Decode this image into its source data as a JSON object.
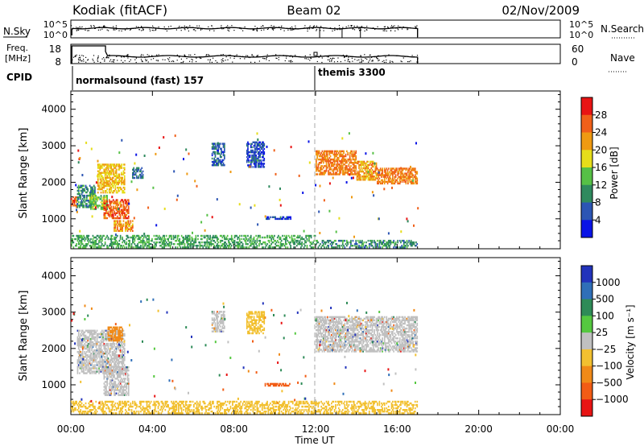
{
  "header": {
    "station": "Kodiak (fitACF)",
    "beam": "Beam 02",
    "date": "02/Nov/2009"
  },
  "nsky_panel": {
    "label": "N.Sky",
    "right_label": "N.Search",
    "tick_top": "10^5",
    "tick_bottom": "10^0"
  },
  "freq_panel": {
    "label_line1": "Freq.",
    "label_line2": "[MHz]",
    "right_label": "Nave",
    "left_ticks": [
      "18",
      "8"
    ],
    "right_ticks": [
      "60",
      "0"
    ]
  },
  "cpid": {
    "label": "CPID",
    "segments": [
      {
        "start_hour": 0,
        "text": "normalsound (fast) 157"
      },
      {
        "start_hour": 12,
        "text": "themis 3300"
      }
    ]
  },
  "x_axis": {
    "label": "Time UT",
    "ticks": [
      "00:00",
      "04:00",
      "08:00",
      "12:00",
      "16:00",
      "20:00",
      "00:00"
    ]
  },
  "colors": {
    "power_scale": [
      "#0a14e6",
      "#2c55b4",
      "#2f8a5e",
      "#56c046",
      "#e6dd1a",
      "#ef9a12",
      "#f0601a",
      "#e81414"
    ],
    "velocity_scale": [
      "#2233bb",
      "#2f6fb8",
      "#2e8b57",
      "#55c840",
      "#c0c0c0",
      "#f2c030",
      "#f08a18",
      "#f25c15",
      "#e81414"
    ]
  },
  "chart_data": [
    {
      "type": "heatmap",
      "title": "",
      "xlabel": "Time UT",
      "ylabel": "Slant Range [km]",
      "xlim": [
        0,
        24
      ],
      "ylim": [
        180,
        4500
      ],
      "yticks": [
        1000,
        2000,
        3000,
        4000
      ],
      "colorbar": {
        "label": "Power [dB]",
        "range": [
          0,
          32
        ],
        "ticks": [
          4,
          8,
          12,
          16,
          20,
          24,
          28
        ]
      },
      "scatter_regions": [
        {
          "t0": 0.0,
          "t1": 0.3,
          "r0": 1300,
          "r1": 1600,
          "value": 26
        },
        {
          "t0": 0.3,
          "t1": 1.2,
          "r0": 1300,
          "r1": 1900,
          "value": 10
        },
        {
          "t0": 0.9,
          "t1": 1.8,
          "r0": 1250,
          "r1": 1650,
          "value": 14
        },
        {
          "t0": 1.3,
          "t1": 2.6,
          "r0": 1700,
          "r1": 2500,
          "value": 20
        },
        {
          "t0": 1.6,
          "t1": 2.8,
          "r0": 1000,
          "r1": 1500,
          "value": 26
        },
        {
          "t0": 2.1,
          "t1": 3.0,
          "r0": 650,
          "r1": 950,
          "value": 22
        },
        {
          "t0": 3.0,
          "t1": 3.5,
          "r0": 2100,
          "r1": 2400,
          "value": 8
        },
        {
          "t0": 6.9,
          "t1": 7.5,
          "r0": 2450,
          "r1": 3050,
          "value": 6
        },
        {
          "t0": 8.6,
          "t1": 9.5,
          "r0": 2400,
          "r1": 3100,
          "value": 5
        },
        {
          "t0": 9.5,
          "t1": 10.8,
          "r0": 980,
          "r1": 1060,
          "value": 5
        },
        {
          "t0": 12.0,
          "t1": 14.0,
          "r0": 2200,
          "r1": 2850,
          "value": 24
        },
        {
          "t0": 14.0,
          "t1": 15.0,
          "r0": 2050,
          "r1": 2550,
          "value": 22
        },
        {
          "t0": 15.0,
          "t1": 17.0,
          "r0": 1950,
          "r1": 2400,
          "value": 24
        },
        {
          "t0": 0.0,
          "t1": 12.0,
          "r0": 200,
          "r1": 520,
          "value": 12
        },
        {
          "t0": 12.0,
          "t1": 17.0,
          "r0": 200,
          "r1": 420,
          "value": 10
        }
      ]
    },
    {
      "type": "heatmap",
      "title": "",
      "xlabel": "Time UT",
      "ylabel": "Slant Range [km]",
      "xlim": [
        0,
        24
      ],
      "ylim": [
        180,
        4500
      ],
      "yticks": [
        1000,
        2000,
        3000,
        4000
      ],
      "colorbar": {
        "label": "Velocity [m s⁻¹]",
        "ticks": [
          "1000",
          "500",
          "100",
          "25",
          "−25",
          "−100",
          "−500",
          "−1000"
        ]
      },
      "scatter_regions": [
        {
          "t0": 0.3,
          "t1": 2.6,
          "r0": 1300,
          "r1": 2500,
          "value": 0
        },
        {
          "t0": 1.6,
          "t1": 2.8,
          "r0": 700,
          "r1": 1500,
          "value": 0
        },
        {
          "t0": 1.8,
          "t1": 2.5,
          "r0": 2200,
          "r1": 2600,
          "value": -150
        },
        {
          "t0": 6.9,
          "t1": 7.5,
          "r0": 2450,
          "r1": 3000,
          "value": 0
        },
        {
          "t0": 8.6,
          "t1": 9.5,
          "r0": 2400,
          "r1": 3000,
          "value": -50
        },
        {
          "t0": 9.5,
          "t1": 10.8,
          "r0": 960,
          "r1": 1040,
          "value": -500
        },
        {
          "t0": 12.0,
          "t1": 17.0,
          "r0": 1900,
          "r1": 2850,
          "value": 0
        },
        {
          "t0": 0.0,
          "t1": 17.0,
          "r0": 200,
          "r1": 560,
          "value": -60
        }
      ]
    }
  ]
}
